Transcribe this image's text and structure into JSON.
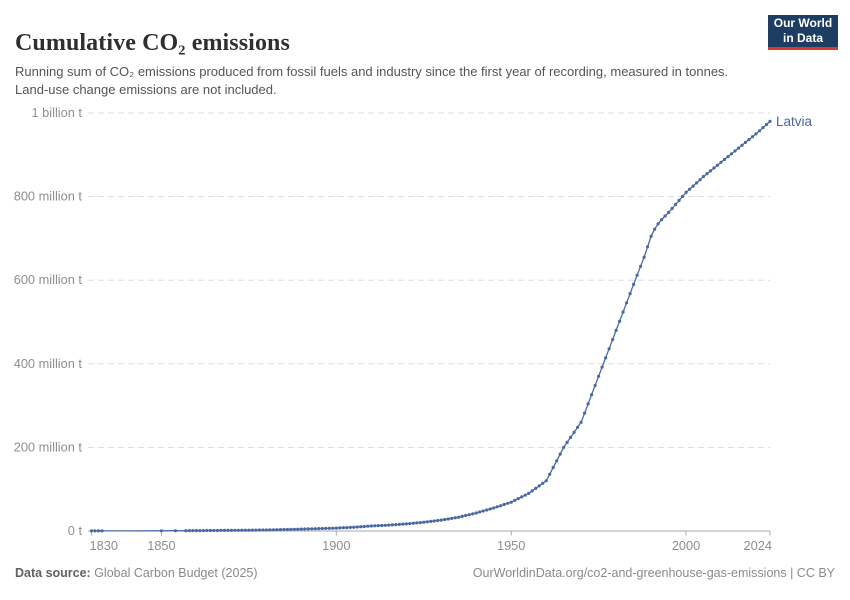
{
  "header": {
    "title": "Cumulative CO₂ emissions",
    "subtitle": "Running sum of CO₂ emissions produced from fossil fuels and industry since the first year of recording, measured in tonnes. Land-use change emissions are not included.",
    "logo": {
      "line1": "Our World",
      "line2": "in Data"
    }
  },
  "footer": {
    "source_label": "Data source:",
    "source_value": " Global Carbon Budget (2025)",
    "credit": "OurWorldinData.org/co2-and-greenhouse-gas-emissions | CC BY"
  },
  "chart_data": {
    "type": "line",
    "title": "Cumulative CO₂ emissions",
    "entity": "Latvia",
    "unit": "tonnes",
    "x_axis": {
      "range": [
        1830,
        2024
      ],
      "ticks": [
        1830,
        1850,
        1900,
        1950,
        2000,
        2024
      ]
    },
    "y_axis": {
      "range_million_tonnes": [
        0,
        1000
      ],
      "grid": "dashed",
      "ticks": [
        {
          "value": 0,
          "label": "0 t"
        },
        {
          "value": 200,
          "label": "200 million t"
        },
        {
          "value": 400,
          "label": "400 million t"
        },
        {
          "value": 600,
          "label": "600 million t"
        },
        {
          "value": 800,
          "label": "800 million t"
        },
        {
          "value": 1000,
          "label": "1 billion t"
        }
      ]
    },
    "legend_position": "end-of-line",
    "series": [
      {
        "name": "Latvia",
        "color": "#4a69a2",
        "isolated_points_million_t": [
          [
            1830,
            0.2
          ],
          [
            1831,
            0.22
          ],
          [
            1832,
            0.25
          ],
          [
            1833,
            0.28
          ],
          [
            1850,
            0.5
          ],
          [
            1854,
            0.6
          ]
        ],
        "anchor_points_million_t": [
          [
            1857,
            0.8
          ],
          [
            1870,
            1.5
          ],
          [
            1880,
            2.5
          ],
          [
            1890,
            4.5
          ],
          [
            1900,
            7
          ],
          [
            1905,
            9
          ],
          [
            1910,
            12
          ],
          [
            1915,
            14
          ],
          [
            1920,
            17
          ],
          [
            1925,
            21
          ],
          [
            1930,
            26
          ],
          [
            1935,
            33
          ],
          [
            1940,
            43
          ],
          [
            1945,
            55
          ],
          [
            1950,
            69
          ],
          [
            1955,
            90
          ],
          [
            1960,
            120
          ],
          [
            1965,
            200
          ],
          [
            1970,
            260
          ],
          [
            1975,
            370
          ],
          [
            1980,
            480
          ],
          [
            1985,
            590
          ],
          [
            1988,
            655
          ],
          [
            1990,
            705
          ],
          [
            1991,
            722
          ],
          [
            1992,
            735
          ],
          [
            1993,
            745
          ],
          [
            1995,
            762
          ],
          [
            2000,
            810
          ],
          [
            2005,
            848
          ],
          [
            2010,
            882
          ],
          [
            2015,
            916
          ],
          [
            2020,
            950
          ],
          [
            2024,
            980
          ]
        ]
      }
    ],
    "colors": {
      "line": "#4a69a2",
      "gridline": "#dddddd",
      "axis": "#a8a8a8",
      "tick_label": "#8e8e8e"
    }
  }
}
